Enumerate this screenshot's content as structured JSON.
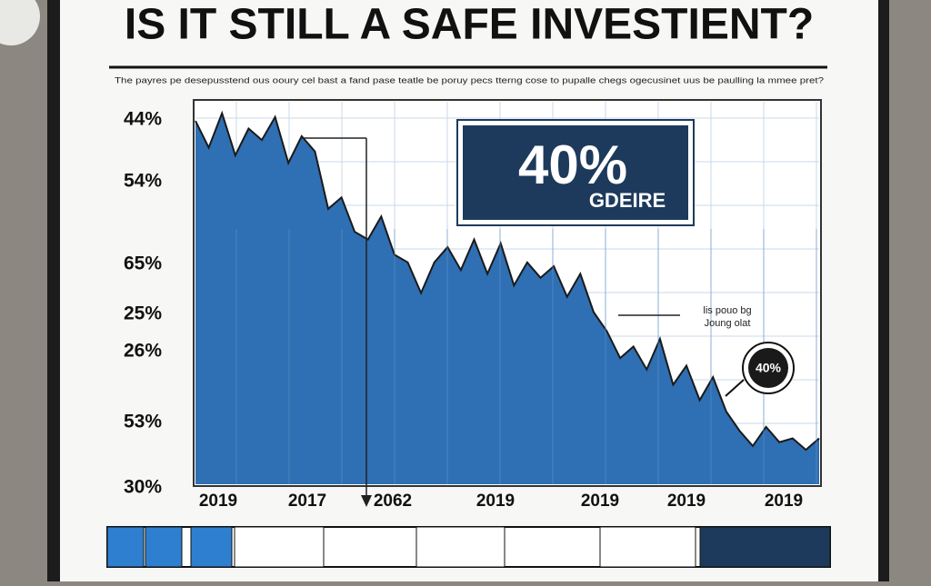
{
  "chart_data": {
    "type": "area",
    "title": "IS IT STILL A SAFE INVESTIENT?",
    "subtitle": "The payres pe desepusstend ous ooury cel bast a fand pase teatle be poruy pecs tterng cose to pupalle chegs ogecusinet uus be paulling la mmee pret?",
    "y_labels": [
      "44%",
      "54%",
      "65%",
      "25%",
      "26%",
      "53%",
      "30%"
    ],
    "x_labels": [
      "2019",
      "2017",
      "2062",
      "2019",
      "2019",
      "2019",
      "2019"
    ],
    "values": [
      95,
      88,
      97,
      86,
      93,
      90,
      96,
      84,
      91,
      87,
      72,
      75,
      66,
      64,
      70,
      60,
      58,
      50,
      58,
      62,
      56,
      64,
      55,
      63,
      52,
      58,
      54,
      57,
      49,
      55,
      45,
      40,
      33,
      36,
      30,
      38,
      26,
      31,
      22,
      28,
      19,
      14,
      10,
      15,
      11,
      12,
      9,
      12
    ],
    "ylim": [
      0,
      100
    ],
    "color": "#2f6fb3",
    "callout": {
      "value": "40%",
      "label": "GDEIRE"
    },
    "annotation": [
      "lis pouo bg",
      "Joung olat"
    ],
    "badge": "40%"
  }
}
